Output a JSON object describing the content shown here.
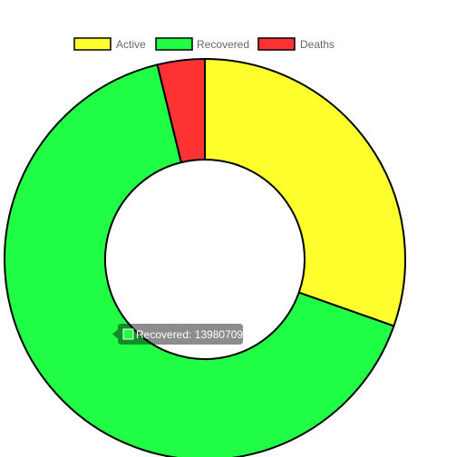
{
  "chart_data": {
    "type": "doughnut",
    "categories": [
      "Active",
      "Recovered",
      "Deaths"
    ],
    "values": [
      6460000,
      13980709,
      810000
    ],
    "colors": [
      "#ffff2e",
      "#20ff45",
      "#ff3333"
    ],
    "legend_position": "top",
    "tooltip": {
      "visible": true,
      "series_index": 1,
      "text": "Recovered: 13980709"
    }
  }
}
